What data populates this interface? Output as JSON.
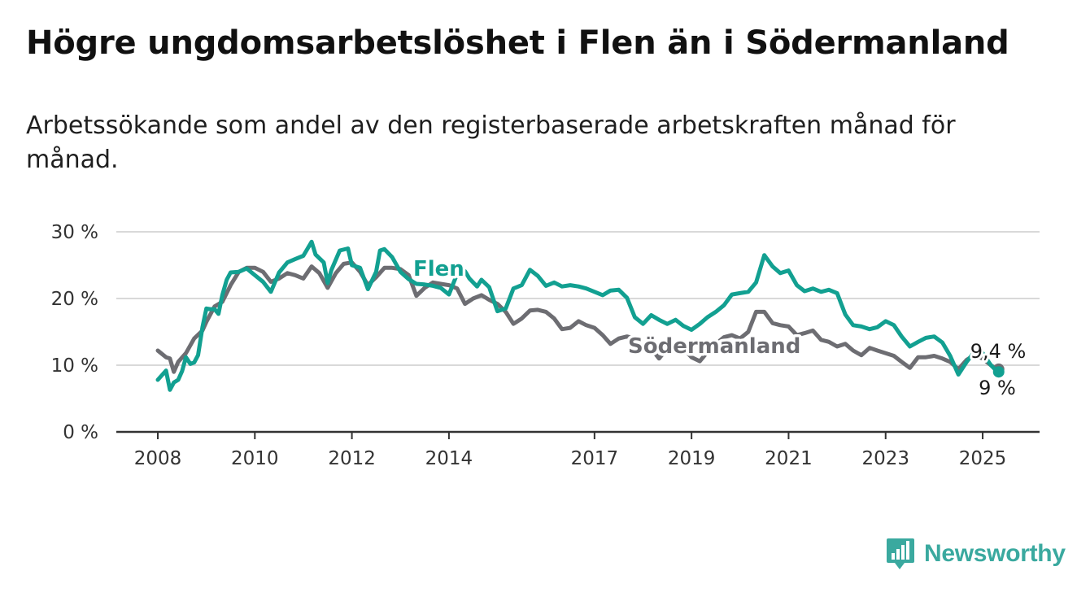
{
  "title": "Högre ungdomsarbetslöshet i Flen än i Södermanland",
  "subtitle": "Arbetssökande som andel av den registerbaserade arbetskraften månad för månad.",
  "logo": {
    "text": "Newsworthy",
    "icon": "newsworthy-bar-chart-icon"
  },
  "colors": {
    "flen": "#12a091",
    "sodermanland": "#6d6d72",
    "grid": "#d9d9d9",
    "axis": "#333333"
  },
  "chart_data": {
    "type": "line",
    "ylim": [
      0,
      30
    ],
    "yticks": [
      0,
      10,
      20,
      30
    ],
    "ytick_labels": [
      "0 %",
      "10 %",
      "20 %",
      "30 %"
    ],
    "xlim": [
      2008.0,
      2026.2
    ],
    "xticks": [
      2008,
      2010,
      2012,
      2014,
      2017,
      2019,
      2021,
      2023,
      2025
    ],
    "xtick_labels": [
      "2008",
      "2010",
      "2012",
      "2014",
      "2017",
      "2019",
      "2021",
      "2023",
      "2025"
    ],
    "grid": true,
    "legend": "inline labels",
    "series": [
      {
        "name": "Flen",
        "color": "#12a091",
        "end_label": "9 %",
        "x": [
          2008.0,
          2008.17,
          2008.25,
          2008.33,
          2008.42,
          2008.5,
          2008.58,
          2008.67,
          2008.75,
          2008.83,
          2008.92,
          2009.0,
          2009.08,
          2009.17,
          2009.25,
          2009.33,
          2009.42,
          2009.5,
          2009.67,
          2009.83,
          2010.0,
          2010.17,
          2010.33,
          2010.5,
          2010.67,
          2010.83,
          2011.0,
          2011.17,
          2011.25,
          2011.42,
          2011.5,
          2011.58,
          2011.75,
          2011.92,
          2012.0,
          2012.17,
          2012.33,
          2012.5,
          2012.58,
          2012.67,
          2012.83,
          2013.0,
          2013.17,
          2013.33,
          2013.5,
          2013.67,
          2013.83,
          2014.0,
          2014.17,
          2014.33,
          2014.42,
          2014.58,
          2014.67,
          2014.83,
          2015.0,
          2015.17,
          2015.33,
          2015.5,
          2015.67,
          2015.83,
          2016.0,
          2016.17,
          2016.33,
          2016.5,
          2016.67,
          2016.83,
          2017.0,
          2017.17,
          2017.33,
          2017.5,
          2017.67,
          2017.83,
          2018.0,
          2018.17,
          2018.33,
          2018.5,
          2018.67,
          2018.83,
          2019.0,
          2019.17,
          2019.33,
          2019.5,
          2019.67,
          2019.83,
          2020.0,
          2020.17,
          2020.33,
          2020.5,
          2020.67,
          2020.83,
          2021.0,
          2021.17,
          2021.33,
          2021.5,
          2021.67,
          2021.83,
          2022.0,
          2022.17,
          2022.33,
          2022.5,
          2022.67,
          2022.83,
          2023.0,
          2023.17,
          2023.33,
          2023.5,
          2023.67,
          2023.83,
          2024.0,
          2024.17,
          2024.33,
          2024.5,
          2024.67,
          2024.83,
          2025.0,
          2025.17,
          2025.25,
          2025.33
        ],
        "values": [
          7.8,
          9.2,
          6.3,
          7.4,
          7.8,
          9.1,
          11.2,
          10.2,
          10.4,
          11.5,
          15.7,
          18.5,
          18.4,
          18.4,
          17.7,
          20.5,
          22.8,
          23.9,
          24.0,
          24.5,
          23.5,
          22.5,
          21.0,
          23.9,
          25.4,
          25.9,
          26.4,
          28.5,
          26.6,
          25.4,
          22.3,
          24.3,
          27.2,
          27.5,
          25.0,
          24.6,
          21.4,
          24.0,
          27.2,
          27.4,
          26.2,
          24.0,
          22.9,
          22.2,
          22.1,
          21.9,
          21.6,
          20.6,
          23.7,
          24.1,
          23.0,
          21.8,
          22.8,
          21.7,
          18.1,
          18.5,
          21.5,
          22.0,
          24.3,
          23.4,
          21.9,
          22.4,
          21.8,
          22.0,
          21.8,
          21.5,
          21.0,
          20.5,
          21.2,
          21.3,
          20.1,
          17.2,
          16.2,
          17.5,
          16.8,
          16.2,
          16.8,
          15.9,
          15.3,
          16.2,
          17.2,
          18.0,
          19.0,
          20.6,
          20.8,
          21.0,
          22.4,
          26.5,
          24.8,
          23.8,
          24.2,
          22.0,
          21.1,
          21.5,
          21.0,
          21.3,
          20.8,
          17.6,
          16.0,
          15.8,
          15.4,
          15.7,
          16.6,
          16.0,
          14.3,
          12.8,
          13.5,
          14.1,
          14.3,
          13.4,
          11.4,
          8.6,
          10.5,
          12.0,
          11.8,
          10.0,
          9.4,
          9.0
        ]
      },
      {
        "name": "Södermanland",
        "color": "#6d6d72",
        "end_label": "9,4 %",
        "x": [
          2008.0,
          2008.17,
          2008.25,
          2008.33,
          2008.42,
          2008.58,
          2008.75,
          2008.92,
          2009.0,
          2009.17,
          2009.33,
          2009.5,
          2009.67,
          2009.83,
          2010.0,
          2010.17,
          2010.33,
          2010.5,
          2010.67,
          2010.83,
          2011.0,
          2011.17,
          2011.33,
          2011.5,
          2011.67,
          2011.83,
          2012.0,
          2012.17,
          2012.33,
          2012.5,
          2012.67,
          2012.83,
          2013.0,
          2013.17,
          2013.33,
          2013.5,
          2013.67,
          2013.83,
          2014.0,
          2014.17,
          2014.33,
          2014.5,
          2014.67,
          2014.83,
          2015.0,
          2015.17,
          2015.33,
          2015.5,
          2015.67,
          2015.83,
          2016.0,
          2016.17,
          2016.33,
          2016.5,
          2016.67,
          2016.83,
          2017.0,
          2017.17,
          2017.33,
          2017.5,
          2017.67,
          2017.83,
          2018.0,
          2018.17,
          2018.33,
          2018.5,
          2018.67,
          2018.83,
          2019.0,
          2019.17,
          2019.33,
          2019.5,
          2019.67,
          2019.83,
          2020.0,
          2020.17,
          2020.33,
          2020.5,
          2020.67,
          2020.83,
          2021.0,
          2021.17,
          2021.33,
          2021.5,
          2021.67,
          2021.83,
          2022.0,
          2022.17,
          2022.33,
          2022.5,
          2022.67,
          2022.83,
          2023.0,
          2023.17,
          2023.33,
          2023.5,
          2023.67,
          2023.83,
          2024.0,
          2024.17,
          2024.33,
          2024.5,
          2024.67,
          2024.83,
          2025.0,
          2025.17,
          2025.25,
          2025.33
        ],
        "values": [
          12.2,
          11.2,
          11.0,
          9.0,
          10.5,
          11.8,
          14.0,
          15.2,
          16.5,
          18.8,
          19.5,
          22.0,
          24.0,
          24.6,
          24.6,
          24.0,
          22.5,
          23.0,
          23.8,
          23.5,
          23.0,
          24.8,
          23.8,
          21.6,
          23.8,
          25.2,
          25.4,
          24.0,
          22.0,
          23.2,
          24.6,
          24.6,
          24.4,
          23.5,
          20.4,
          21.6,
          22.4,
          22.2,
          22.0,
          21.5,
          19.2,
          20.0,
          20.5,
          19.8,
          19.2,
          18.0,
          16.2,
          17.0,
          18.2,
          18.3,
          18.0,
          17.0,
          15.4,
          15.6,
          16.6,
          16.0,
          15.6,
          14.5,
          13.2,
          14.0,
          14.3,
          14.0,
          13.0,
          12.5,
          11.0,
          12.5,
          12.8,
          12.5,
          11.2,
          10.6,
          12.0,
          13.2,
          14.2,
          14.5,
          14.0,
          15.0,
          18.0,
          18.0,
          16.3,
          16.0,
          15.8,
          14.5,
          14.8,
          15.2,
          13.8,
          13.5,
          12.8,
          13.2,
          12.2,
          11.5,
          12.6,
          12.2,
          11.8,
          11.4,
          10.5,
          9.6,
          11.2,
          11.2,
          11.4,
          11.0,
          10.5,
          9.4,
          10.8,
          11.5,
          11.0,
          10.0,
          9.6,
          9.4
        ]
      }
    ]
  }
}
